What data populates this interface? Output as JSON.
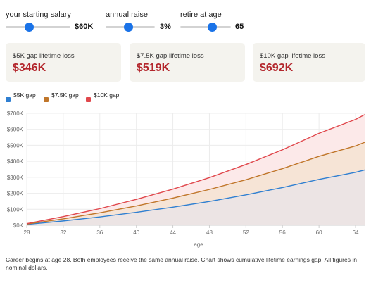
{
  "controls": [
    {
      "label": "your starting salary",
      "value": "$60K",
      "fraction": 0.36
    },
    {
      "label": "annual raise",
      "value": "3%",
      "fraction": 0.47
    },
    {
      "label": "retire at age",
      "value": "65",
      "fraction": 0.63
    }
  ],
  "cards": [
    {
      "label": "$5K gap lifetime loss",
      "value": "$346K"
    },
    {
      "label": "$7.5K gap lifetime loss",
      "value": "$519K"
    },
    {
      "label": "$10K gap lifetime loss",
      "value": "$692K"
    }
  ],
  "colors": {
    "slider_thumb": "#1a73e8",
    "loss_value": "#b3262c",
    "card_bg": "#f4f3ee"
  },
  "chart_data": {
    "type": "area",
    "xlabel": "age",
    "ylabel": "",
    "xlim": [
      28,
      65
    ],
    "ylim": [
      0,
      700000
    ],
    "x_ticks": [
      28,
      32,
      36,
      40,
      44,
      48,
      52,
      56,
      60,
      64
    ],
    "y_ticks": [
      0,
      100000,
      200000,
      300000,
      400000,
      500000,
      600000,
      700000
    ],
    "y_tick_labels": [
      "$0K",
      "$100K",
      "$200K",
      "$300K",
      "$400K",
      "$500K",
      "$600K",
      "$700K"
    ],
    "x": [
      28,
      32,
      36,
      40,
      44,
      48,
      52,
      56,
      60,
      64,
      65
    ],
    "series": [
      {
        "name": "$5K gap",
        "color": "#2f7fd1",
        "fill": "#ece4e4",
        "values": [
          5000,
          27000,
          52000,
          81000,
          113000,
          149000,
          190000,
          236000,
          287000,
          331000,
          346000
        ]
      },
      {
        "name": "$7.5K gap",
        "color": "#c0762a",
        "fill": "#f6e4d6",
        "values": [
          7500,
          40000,
          78000,
          121000,
          170000,
          224000,
          285000,
          354000,
          431000,
          496000,
          519000
        ]
      },
      {
        "name": "$10K gap",
        "color": "#e0474c",
        "fill": "#fce9e9",
        "values": [
          10000,
          54000,
          104000,
          162000,
          226000,
          298000,
          380000,
          472000,
          575000,
          662000,
          692000
        ]
      }
    ],
    "legend_position": "top-left",
    "grid": true
  },
  "caption": "Career begins at age 28. Both employees receive the same annual raise. Chart shows cumulative lifetime earnings gap. All figures in nominal dollars."
}
